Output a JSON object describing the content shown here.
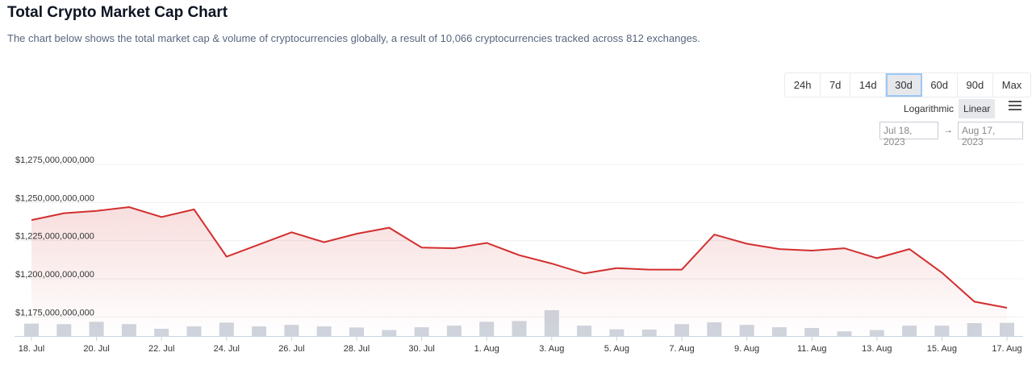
{
  "header": {
    "title": "Total Crypto Market Cap Chart",
    "description": "The chart below shows the total market cap & volume of cryptocurrencies globally, a result of 10,066 cryptocurrencies tracked across 812 exchanges."
  },
  "controls": {
    "ranges": [
      "24h",
      "7d",
      "14d",
      "30d",
      "60d",
      "90d",
      "Max"
    ],
    "active_range": "30d",
    "scale_log": "Logarithmic",
    "scale_linear": "Linear",
    "active_scale": "Linear",
    "date_from": "Jul 18, 2023",
    "date_arrow": "→",
    "date_to": "Aug 17, 2023"
  },
  "colors": {
    "line": "#d32f2f",
    "volume": "#cfd4dc",
    "grid": "#eef0f3"
  },
  "chart_data": {
    "type": "line",
    "grid": true,
    "ylim": [
      1162500000000,
      1275000000000
    ],
    "yticks": [
      "$1,175,000,000,000",
      "$1,200,000,000,000",
      "$1,225,000,000,000",
      "$1,250,000,000,000",
      "$1,275,000,000,000"
    ],
    "xticks": [
      "18. Jul",
      "20. Jul",
      "22. Jul",
      "24. Jul",
      "26. Jul",
      "28. Jul",
      "30. Jul",
      "1. Aug",
      "3. Aug",
      "5. Aug",
      "7. Aug",
      "9. Aug",
      "11. Aug",
      "13. Aug",
      "15. Aug",
      "17. Aug"
    ],
    "x": [
      "Jul 18",
      "Jul 19",
      "Jul 20",
      "Jul 21",
      "Jul 22",
      "Jul 23",
      "Jul 24",
      "Jul 25",
      "Jul 26",
      "Jul 27",
      "Jul 28",
      "Jul 29",
      "Jul 30",
      "Jul 31",
      "Aug 1",
      "Aug 2",
      "Aug 3",
      "Aug 4",
      "Aug 5",
      "Aug 6",
      "Aug 7",
      "Aug 8",
      "Aug 9",
      "Aug 10",
      "Aug 11",
      "Aug 12",
      "Aug 13",
      "Aug 14",
      "Aug 15",
      "Aug 16",
      "Aug 17"
    ],
    "series": [
      {
        "values": [
          1238500000000,
          1243000000000,
          1244500000000,
          1247000000000,
          1240500000000,
          1245500000000,
          1214500000000,
          1222500000000,
          1230500000000,
          1224000000000,
          1229500000000,
          1233500000000,
          1220500000000,
          1220000000000,
          1223500000000,
          1215500000000,
          1210000000000,
          1203500000000,
          1207000000000,
          1206000000000,
          1206000000000,
          1229000000000,
          1223000000000,
          1219500000000,
          1218500000000,
          1220000000000,
          1213500000000,
          1219500000000,
          1204000000000,
          1185000000000,
          1181000000000
        ]
      }
    ],
    "volume_relative": [
      0.48,
      0.46,
      0.55,
      0.46,
      0.28,
      0.37,
      0.52,
      0.37,
      0.43,
      0.37,
      0.33,
      0.23,
      0.34,
      0.4,
      0.55,
      0.58,
      1.0,
      0.4,
      0.26,
      0.25,
      0.46,
      0.53,
      0.43,
      0.34,
      0.31,
      0.18,
      0.23,
      0.4,
      0.4,
      0.5,
      0.51
    ]
  }
}
